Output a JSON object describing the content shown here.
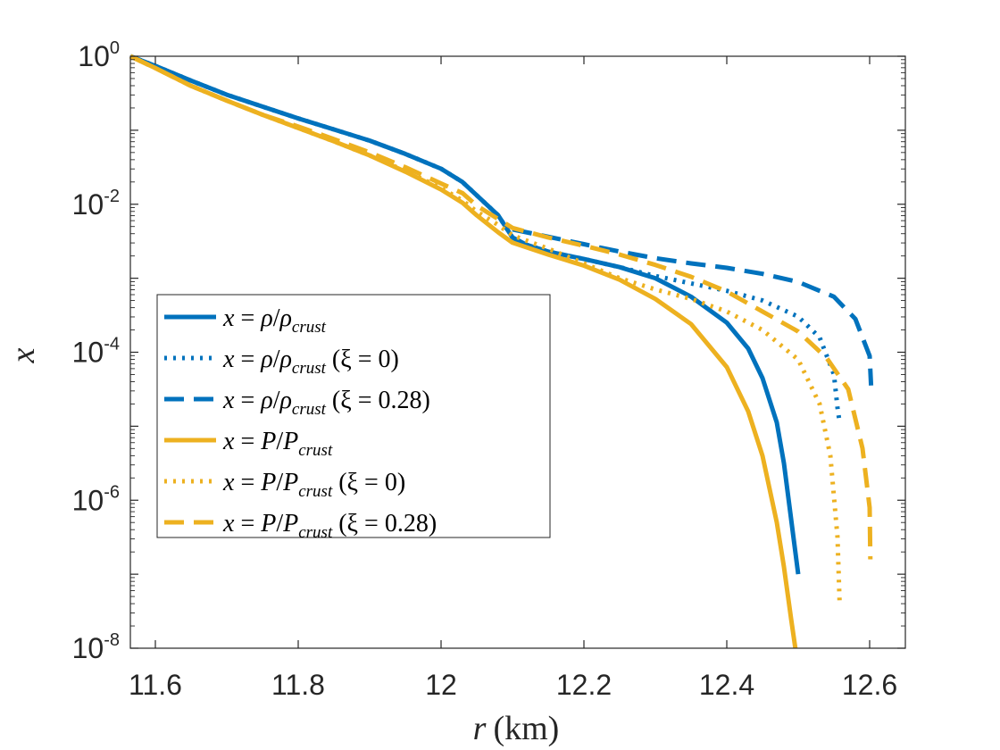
{
  "chart_data": {
    "type": "line",
    "yscale": "log",
    "xlabel": "r",
    "xlabel_unit": "(km)",
    "ylabel": "x",
    "xlim": [
      11.565,
      12.65
    ],
    "ylim": [
      1e-08,
      1
    ],
    "xticks": [
      11.6,
      11.8,
      12.0,
      12.2,
      12.4,
      12.6
    ],
    "xtick_labels": [
      "11.6",
      "11.8",
      "12",
      "12.2",
      "12.4",
      "12.6"
    ],
    "yticks": [
      {
        "base": "10",
        "exp": "0",
        "value": 0
      },
      {
        "base": "10",
        "exp": "-2",
        "value": -2
      },
      {
        "base": "10",
        "exp": "-4",
        "value": -4
      },
      {
        "base": "10",
        "exp": "-6",
        "value": -6
      },
      {
        "base": "10",
        "exp": "-8",
        "value": -8
      }
    ],
    "legend_position": "center-left",
    "series": [
      {
        "name": "x = ρ/ρ_crust",
        "legend": {
          "lhs": "x",
          "eq": " = ",
          "num": "ρ",
          "slash": "/",
          "den": "ρ",
          "sub": "crust",
          "extra": ""
        },
        "color": "#0072BD",
        "style": "solid",
        "points": [
          [
            11.565,
            0
          ],
          [
            11.6,
            -0.13
          ],
          [
            11.65,
            -0.33
          ],
          [
            11.7,
            -0.52
          ],
          [
            11.75,
            -0.68
          ],
          [
            11.8,
            -0.84
          ],
          [
            11.85,
            -0.99
          ],
          [
            11.9,
            -1.14
          ],
          [
            11.95,
            -1.32
          ],
          [
            12.0,
            -1.52
          ],
          [
            12.03,
            -1.7
          ],
          [
            12.05,
            -1.88
          ],
          [
            12.08,
            -2.15
          ],
          [
            12.1,
            -2.45
          ],
          [
            12.12,
            -2.55
          ],
          [
            12.15,
            -2.64
          ],
          [
            12.2,
            -2.74
          ],
          [
            12.25,
            -2.85
          ],
          [
            12.3,
            -3.0
          ],
          [
            12.35,
            -3.25
          ],
          [
            12.4,
            -3.6
          ],
          [
            12.43,
            -3.95
          ],
          [
            12.45,
            -4.35
          ],
          [
            12.47,
            -4.95
          ],
          [
            12.48,
            -5.5
          ],
          [
            12.49,
            -6.25
          ],
          [
            12.5,
            -7.0
          ]
        ]
      },
      {
        "name": "x = ρ/ρ_crust (ξ = 0)",
        "legend": {
          "lhs": "x",
          "eq": " = ",
          "num": "ρ",
          "slash": "/",
          "den": "ρ",
          "sub": "crust",
          "extra": " (ξ = 0)"
        },
        "color": "#0072BD",
        "style": "dotted",
        "points": [
          [
            11.565,
            0
          ],
          [
            11.6,
            -0.13
          ],
          [
            11.65,
            -0.33
          ],
          [
            11.7,
            -0.52
          ],
          [
            11.75,
            -0.68
          ],
          [
            11.8,
            -0.84
          ],
          [
            11.85,
            -0.99
          ],
          [
            11.9,
            -1.14
          ],
          [
            11.95,
            -1.32
          ],
          [
            12.0,
            -1.52
          ],
          [
            12.03,
            -1.7
          ],
          [
            12.05,
            -1.88
          ],
          [
            12.08,
            -2.15
          ],
          [
            12.1,
            -2.45
          ],
          [
            12.12,
            -2.55
          ],
          [
            12.15,
            -2.64
          ],
          [
            12.2,
            -2.74
          ],
          [
            12.25,
            -2.85
          ],
          [
            12.3,
            -2.97
          ],
          [
            12.35,
            -3.07
          ],
          [
            12.4,
            -3.17
          ],
          [
            12.45,
            -3.3
          ],
          [
            12.5,
            -3.52
          ],
          [
            12.53,
            -3.8
          ],
          [
            12.55,
            -4.3
          ],
          [
            12.555,
            -4.75
          ],
          [
            12.558,
            -4.95
          ]
        ]
      },
      {
        "name": "x = ρ/ρ_crust (ξ = 0.28)",
        "legend": {
          "lhs": "x",
          "eq": " = ",
          "num": "ρ",
          "slash": "/",
          "den": "ρ",
          "sub": "crust",
          "extra": " (ξ = 0.28)"
        },
        "color": "#0072BD",
        "style": "dashed",
        "points": [
          [
            12.1,
            -2.34
          ],
          [
            12.15,
            -2.44
          ],
          [
            12.2,
            -2.54
          ],
          [
            12.25,
            -2.64
          ],
          [
            12.3,
            -2.73
          ],
          [
            12.35,
            -2.8
          ],
          [
            12.4,
            -2.86
          ],
          [
            12.45,
            -2.94
          ],
          [
            12.5,
            -3.05
          ],
          [
            12.55,
            -3.25
          ],
          [
            12.58,
            -3.55
          ],
          [
            12.6,
            -4.05
          ],
          [
            12.602,
            -4.45
          ]
        ]
      },
      {
        "name": "x = P/P_crust",
        "legend": {
          "lhs": "x",
          "eq": " = ",
          "num": "P",
          "slash": "/",
          "den": "P",
          "sub": "crust",
          "extra": ""
        },
        "color": "#EDB120",
        "style": "solid",
        "points": [
          [
            11.565,
            0
          ],
          [
            11.6,
            -0.16
          ],
          [
            11.65,
            -0.4
          ],
          [
            11.7,
            -0.6
          ],
          [
            11.75,
            -0.79
          ],
          [
            11.8,
            -0.97
          ],
          [
            11.85,
            -1.15
          ],
          [
            11.9,
            -1.34
          ],
          [
            11.95,
            -1.56
          ],
          [
            12.0,
            -1.8
          ],
          [
            12.03,
            -1.98
          ],
          [
            12.05,
            -2.15
          ],
          [
            12.08,
            -2.38
          ],
          [
            12.1,
            -2.52
          ],
          [
            12.15,
            -2.68
          ],
          [
            12.2,
            -2.83
          ],
          [
            12.25,
            -3.02
          ],
          [
            12.3,
            -3.28
          ],
          [
            12.35,
            -3.62
          ],
          [
            12.4,
            -4.2
          ],
          [
            12.43,
            -4.8
          ],
          [
            12.45,
            -5.4
          ],
          [
            12.47,
            -6.3
          ],
          [
            12.48,
            -6.9
          ],
          [
            12.49,
            -7.6
          ],
          [
            12.496,
            -8.0
          ]
        ]
      },
      {
        "name": "x = P/P_crust (ξ = 0)",
        "legend": {
          "lhs": "x",
          "eq": " = ",
          "num": "P",
          "slash": "/",
          "den": "P",
          "sub": "crust",
          "extra": " (ξ = 0)"
        },
        "color": "#EDB120",
        "style": "dotted",
        "points": [
          [
            11.565,
            0
          ],
          [
            11.6,
            -0.16
          ],
          [
            11.65,
            -0.4
          ],
          [
            11.7,
            -0.6
          ],
          [
            11.75,
            -0.79
          ],
          [
            11.8,
            -0.97
          ],
          [
            11.85,
            -1.15
          ],
          [
            11.9,
            -1.34
          ],
          [
            11.95,
            -1.55
          ],
          [
            12.0,
            -1.78
          ],
          [
            12.03,
            -1.95
          ],
          [
            12.05,
            -2.1
          ],
          [
            12.08,
            -2.28
          ],
          [
            12.1,
            -2.42
          ],
          [
            12.15,
            -2.6
          ],
          [
            12.2,
            -2.8
          ],
          [
            12.25,
            -3.0
          ],
          [
            12.3,
            -3.15
          ],
          [
            12.35,
            -3.28
          ],
          [
            12.4,
            -3.45
          ],
          [
            12.45,
            -3.7
          ],
          [
            12.5,
            -4.1
          ],
          [
            12.53,
            -4.7
          ],
          [
            12.545,
            -5.4
          ],
          [
            12.555,
            -6.5
          ],
          [
            12.558,
            -7.4
          ]
        ]
      },
      {
        "name": "x = P/P_crust (ξ = 0.28)",
        "legend": {
          "lhs": "x",
          "eq": " = ",
          "num": "P",
          "slash": "/",
          "den": "P",
          "sub": "crust",
          "extra": " (ξ = 0.28)"
        },
        "color": "#EDB120",
        "style": "dashed",
        "points": [
          [
            11.565,
            0
          ],
          [
            11.6,
            -0.16
          ],
          [
            11.65,
            -0.4
          ],
          [
            11.7,
            -0.6
          ],
          [
            11.75,
            -0.79
          ],
          [
            11.8,
            -0.95
          ],
          [
            11.85,
            -1.12
          ],
          [
            11.9,
            -1.3
          ],
          [
            11.95,
            -1.5
          ],
          [
            12.0,
            -1.72
          ],
          [
            12.03,
            -1.85
          ],
          [
            12.05,
            -2.02
          ],
          [
            12.08,
            -2.2
          ],
          [
            12.1,
            -2.32
          ],
          [
            12.15,
            -2.45
          ],
          [
            12.2,
            -2.56
          ],
          [
            12.25,
            -2.68
          ],
          [
            12.3,
            -2.82
          ],
          [
            12.35,
            -2.98
          ],
          [
            12.4,
            -3.18
          ],
          [
            12.45,
            -3.45
          ],
          [
            12.5,
            -3.72
          ],
          [
            12.54,
            -4.08
          ],
          [
            12.57,
            -4.5
          ],
          [
            12.59,
            -5.3
          ],
          [
            12.6,
            -6.1
          ],
          [
            12.601,
            -6.8
          ]
        ]
      }
    ]
  }
}
